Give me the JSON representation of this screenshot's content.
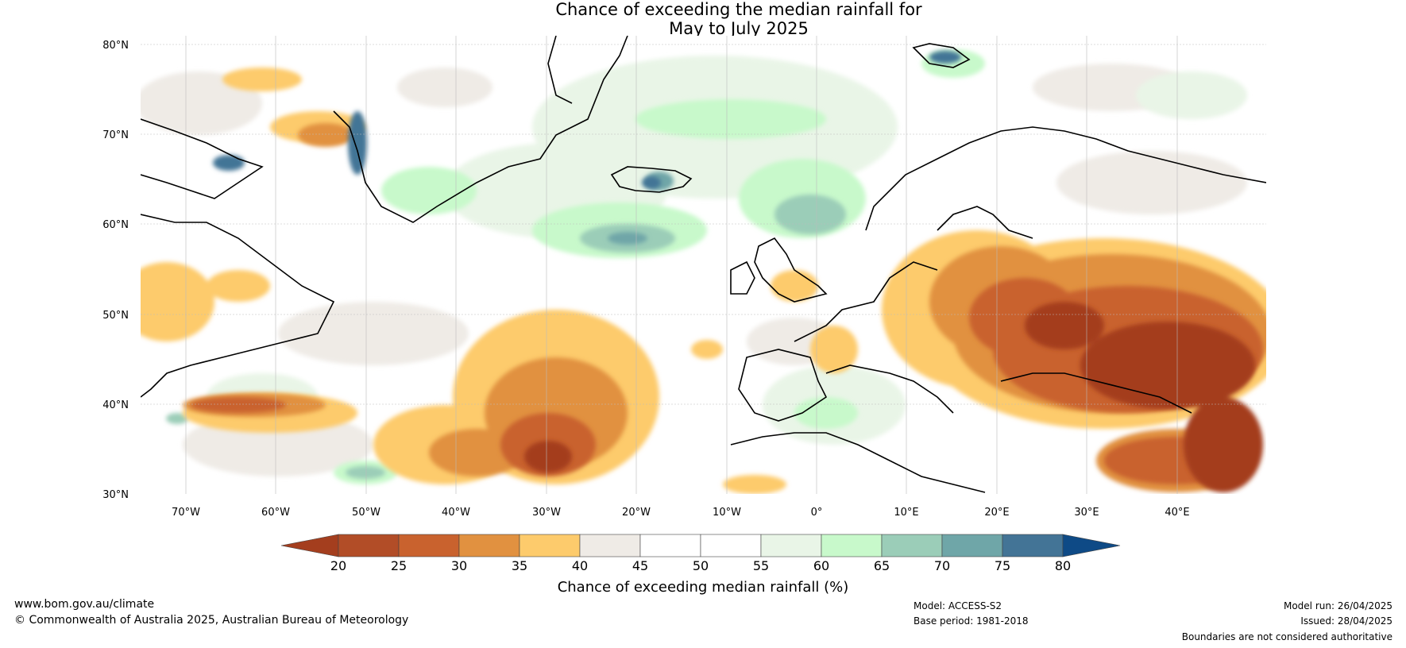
{
  "title": {
    "line1": "Chance of exceeding the median rainfall for",
    "line2": "May to July 2025"
  },
  "axes": {
    "lat_labels": [
      "80°N",
      "70°N",
      "60°N",
      "50°N",
      "40°N",
      "30°N"
    ],
    "lon_labels": [
      "70°W",
      "60°W",
      "50°W",
      "40°W",
      "30°W",
      "20°W",
      "10°W",
      "0°",
      "10°E",
      "20°E",
      "30°E",
      "40°E"
    ]
  },
  "colorbar": {
    "label": "Chance of exceeding median rainfall (%)",
    "ticks": [
      "20",
      "25",
      "30",
      "35",
      "40",
      "45",
      "50",
      "55",
      "60",
      "65",
      "70",
      "75",
      "80"
    ],
    "colors": [
      "#a43e1e",
      "#b24d27",
      "#c9622e",
      "#e19140",
      "#fdcb6c",
      "#efebe6",
      "#ffffff",
      "#ffffff",
      "#e9f5e7",
      "#c8f9cb",
      "#9bcdb8",
      "#6fa6a8",
      "#437496",
      "#0e4a86"
    ]
  },
  "footer": {
    "website": "www.bom.gov.au/climate",
    "copyright": "© Commonwealth of Australia 2025, Australian Bureau of Meteorology",
    "model": "Model: ACCESS-S2",
    "base_period": "Base period: 1981-2018",
    "model_run": "Model run: 26/04/2025",
    "issued": "Issued: 28/04/2025",
    "disclaimer": "Boundaries are not considered authoritative"
  }
}
